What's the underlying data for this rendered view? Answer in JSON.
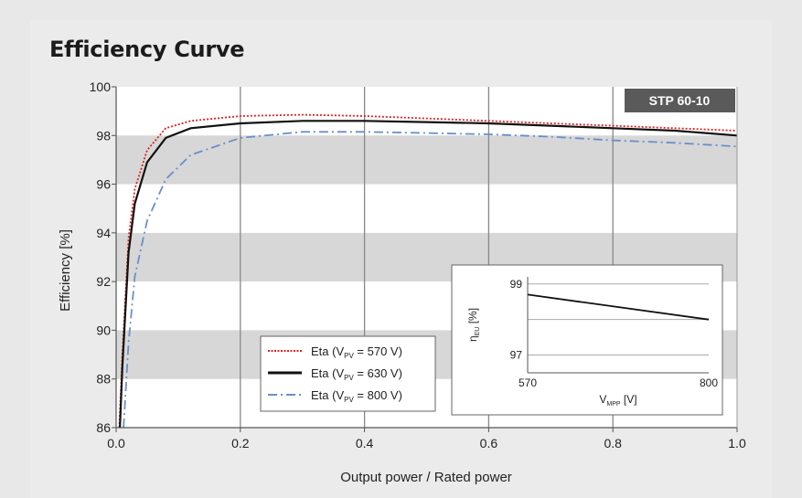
{
  "title": "Efficiency Curve",
  "badge": "STP 60-10",
  "chart_data": {
    "type": "line",
    "xlabel": "Output power / Rated power",
    "ylabel": "Efficiency [%]",
    "xlim": [
      0.0,
      1.0
    ],
    "ylim": [
      86,
      100
    ],
    "x_ticks": [
      "0.0",
      "0.2",
      "0.4",
      "0.6",
      "0.8",
      "1.0"
    ],
    "y_ticks": [
      "86",
      "88",
      "90",
      "92",
      "94",
      "96",
      "98",
      "100"
    ],
    "grid": "vertical lines and alternating grey horizontal bands",
    "legend_position": "bottom-center",
    "series": [
      {
        "label": "Eta (V",
        "sub": "PV",
        "label_end": " = 570 V)",
        "color": "#e02020",
        "style": "dotted",
        "points": [
          [
            0.005,
            86.0
          ],
          [
            0.01,
            89.0
          ],
          [
            0.02,
            93.8
          ],
          [
            0.03,
            95.8
          ],
          [
            0.05,
            97.4
          ],
          [
            0.08,
            98.3
          ],
          [
            0.12,
            98.6
          ],
          [
            0.2,
            98.8
          ],
          [
            0.3,
            98.85
          ],
          [
            0.4,
            98.8
          ],
          [
            0.5,
            98.7
          ],
          [
            0.6,
            98.6
          ],
          [
            0.7,
            98.5
          ],
          [
            0.8,
            98.4
          ],
          [
            0.9,
            98.3
          ],
          [
            1.0,
            98.2
          ]
        ]
      },
      {
        "label": "Eta (V",
        "sub": "PV",
        "label_end": " = 630 V)",
        "color": "#111111",
        "style": "solid",
        "points": [
          [
            0.006,
            86.0
          ],
          [
            0.01,
            88.5
          ],
          [
            0.02,
            93.2
          ],
          [
            0.03,
            95.2
          ],
          [
            0.05,
            96.9
          ],
          [
            0.08,
            97.9
          ],
          [
            0.12,
            98.3
          ],
          [
            0.2,
            98.5
          ],
          [
            0.3,
            98.6
          ],
          [
            0.4,
            98.6
          ],
          [
            0.5,
            98.55
          ],
          [
            0.6,
            98.5
          ],
          [
            0.7,
            98.4
          ],
          [
            0.8,
            98.3
          ],
          [
            0.9,
            98.2
          ],
          [
            1.0,
            98.0
          ]
        ]
      },
      {
        "label": "Eta (V",
        "sub": "PV",
        "label_end": " = 800 V)",
        "color": "#6a8fc8",
        "style": "dashdot",
        "points": [
          [
            0.012,
            86.0
          ],
          [
            0.02,
            89.5
          ],
          [
            0.03,
            92.2
          ],
          [
            0.05,
            94.5
          ],
          [
            0.08,
            96.2
          ],
          [
            0.12,
            97.2
          ],
          [
            0.2,
            97.9
          ],
          [
            0.3,
            98.15
          ],
          [
            0.4,
            98.15
          ],
          [
            0.5,
            98.1
          ],
          [
            0.6,
            98.05
          ],
          [
            0.7,
            97.95
          ],
          [
            0.8,
            97.8
          ],
          [
            0.9,
            97.7
          ],
          [
            1.0,
            97.55
          ]
        ]
      }
    ],
    "inset": {
      "type": "line",
      "ylabel_main": "η",
      "ylabel_sub": "EU",
      "ylabel_end": " [%]",
      "xlabel_main": "V",
      "xlabel_sub": "MPP",
      "xlabel_end": " [V]",
      "xlim": [
        570,
        800
      ],
      "ylim": [
        96.5,
        99.2
      ],
      "x_ticks": [
        "570",
        "800"
      ],
      "y_ticks": [
        "99",
        "97"
      ],
      "gridlines_y": [
        97,
        98,
        99
      ],
      "points": [
        [
          570,
          98.7
        ],
        [
          800,
          98.0
        ]
      ]
    }
  }
}
